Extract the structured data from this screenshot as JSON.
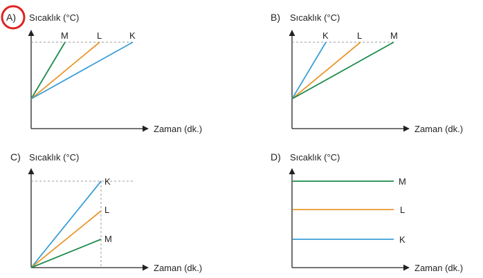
{
  "chart_data": [
    {
      "type": "line",
      "option": "A)",
      "ylabel": "Sıcaklık (°C)",
      "xlabel": "Zaman (dk.)",
      "selected": true,
      "series": [
        {
          "name": "M",
          "color": "#1a8a4a",
          "x": [
            0,
            1
          ],
          "y": [
            0,
            1
          ]
        },
        {
          "name": "L",
          "color": "#e8962a",
          "x": [
            0,
            2
          ],
          "y": [
            0,
            1
          ]
        },
        {
          "name": "K",
          "color": "#3a9fd6",
          "x": [
            0,
            3
          ],
          "y": [
            0,
            1
          ]
        }
      ]
    },
    {
      "type": "line",
      "option": "B)",
      "ylabel": "Sıcaklık (°C)",
      "xlabel": "Zaman (dk.)",
      "series": [
        {
          "name": "K",
          "color": "#3a9fd6",
          "x": [
            0,
            1
          ],
          "y": [
            0,
            1
          ]
        },
        {
          "name": "L",
          "color": "#e8962a",
          "x": [
            0,
            2
          ],
          "y": [
            0,
            1
          ]
        },
        {
          "name": "M",
          "color": "#1a8a4a",
          "x": [
            0,
            3
          ],
          "y": [
            0,
            1
          ]
        }
      ]
    },
    {
      "type": "line",
      "option": "C)",
      "ylabel": "Sıcaklık (°C)",
      "xlabel": "Zaman (dk.)",
      "series": [
        {
          "name": "K",
          "color": "#3a9fd6",
          "x": [
            0,
            1
          ],
          "y": [
            0,
            1.0
          ]
        },
        {
          "name": "L",
          "color": "#e8962a",
          "x": [
            0,
            1
          ],
          "y": [
            0,
            0.66
          ]
        },
        {
          "name": "M",
          "color": "#1a8a4a",
          "x": [
            0,
            1
          ],
          "y": [
            0,
            0.33
          ]
        }
      ]
    },
    {
      "type": "line",
      "option": "D)",
      "ylabel": "Sıcaklık (°C)",
      "xlabel": "Zaman (dk.)",
      "series": [
        {
          "name": "M",
          "color": "#1a8a4a",
          "x": [
            0,
            1
          ],
          "y": [
            1.0,
            1.0
          ]
        },
        {
          "name": "L",
          "color": "#e8962a",
          "x": [
            0,
            1
          ],
          "y": [
            0.5,
            0.5
          ]
        },
        {
          "name": "K",
          "color": "#3a9fd6",
          "x": [
            0,
            1
          ],
          "y": [
            0,
            0
          ]
        }
      ]
    }
  ]
}
